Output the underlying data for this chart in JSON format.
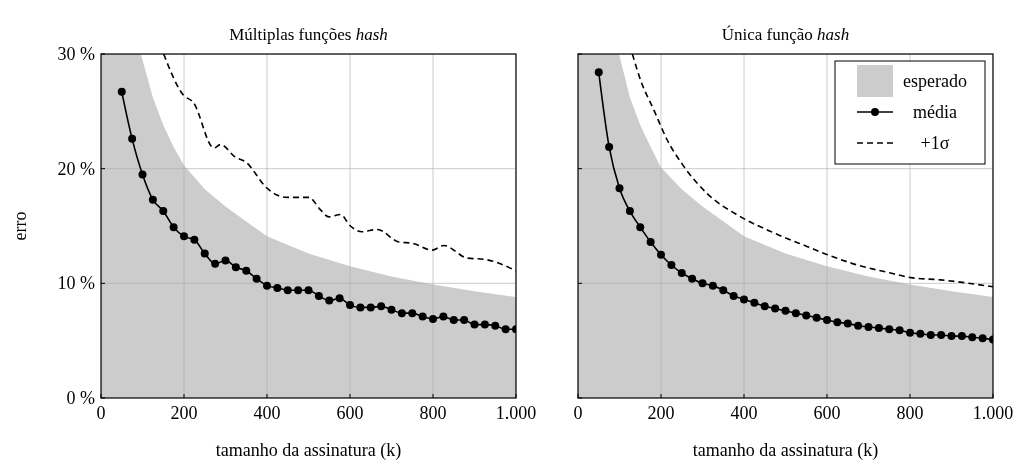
{
  "chart_data": [
    {
      "type": "line",
      "title": "Múltiplas funções hash",
      "xlabel": "tamanho da assinatura (k)",
      "ylabel": "erro",
      "xlim": [
        0,
        1000
      ],
      "ylim": [
        0,
        30
      ],
      "xticks": [
        0,
        200,
        400,
        600,
        800,
        {
          "value": 1000,
          "label": "1.000"
        }
      ],
      "yticks": [
        {
          "value": 0,
          "label": "0 %"
        },
        {
          "value": 10,
          "label": "10 %"
        },
        {
          "value": 20,
          "label": "20 %"
        },
        {
          "value": 30,
          "label": "30 %"
        }
      ],
      "grid": true,
      "legend": false,
      "series": [
        {
          "type": "area",
          "color": "#cccccc",
          "x": [
            0,
            96,
            125,
            150,
            175,
            200,
            250,
            300,
            400,
            500,
            600,
            700,
            800,
            900,
            1000
          ],
          "values": [
            30,
            30,
            26.2,
            23.8,
            21.9,
            20.3,
            18.2,
            16.7,
            14.1,
            12.6,
            11.5,
            10.6,
            9.9,
            9.3,
            8.8
          ]
        },
        {
          "type": "line",
          "color": "#000000",
          "marker": "circle",
          "line_style": "solid",
          "x": [
            50,
            75,
            100,
            125,
            150,
            175,
            200,
            225,
            250,
            275,
            300,
            325,
            350,
            375,
            400,
            425,
            450,
            475,
            500,
            525,
            550,
            575,
            600,
            625,
            650,
            675,
            700,
            725,
            750,
            775,
            800,
            825,
            850,
            875,
            900,
            925,
            950,
            975,
            1000
          ],
          "values": [
            26.7,
            22.6,
            19.5,
            17.3,
            16.3,
            14.9,
            14.1,
            13.8,
            12.6,
            11.7,
            12.0,
            11.4,
            11.1,
            10.4,
            9.8,
            9.6,
            9.4,
            9.4,
            9.4,
            8.9,
            8.5,
            8.7,
            8.1,
            7.9,
            7.9,
            8.0,
            7.7,
            7.4,
            7.4,
            7.1,
            6.9,
            7.1,
            6.8,
            6.8,
            6.4,
            6.4,
            6.3,
            6.0,
            6.0
          ]
        },
        {
          "type": "line",
          "color": "#000000",
          "marker": "none",
          "line_style": "dashed",
          "x": [
            151,
            199,
            222,
            272,
            288,
            324,
            348,
            400,
            424,
            449,
            501,
            529,
            549,
            577,
            601,
            629,
            666,
            718,
            750,
            798,
            826,
            883,
            923,
            1000
          ],
          "values": [
            30,
            26.4,
            25.8,
            21.8,
            22.1,
            21.0,
            20.6,
            18.3,
            17.7,
            17.5,
            17.5,
            16.4,
            15.8,
            16.0,
            15.0,
            14.5,
            14.7,
            13.6,
            13.5,
            12.9,
            13.3,
            12.2,
            12.1,
            11.1
          ]
        }
      ]
    },
    {
      "type": "line",
      "title": "Única função hash",
      "xlabel": "tamanho da assinatura (k)",
      "xlim": [
        0,
        1000
      ],
      "ylim": [
        0,
        30
      ],
      "xticks": [
        0,
        200,
        400,
        600,
        800,
        {
          "value": 1000,
          "label": "1.000"
        }
      ],
      "yticks": [
        {
          "value": 0,
          "label": null
        },
        {
          "value": 10,
          "label": null
        },
        {
          "value": 20,
          "label": null
        },
        {
          "value": 30,
          "label": null
        }
      ],
      "tick_labels": "x",
      "grid": true,
      "legend": "top right",
      "series": [
        {
          "name": "esperado",
          "type": "area",
          "color": "#cccccc",
          "x": [
            0,
            99,
            125,
            150,
            175,
            200,
            250,
            300,
            400,
            500,
            600,
            700,
            800,
            900,
            1000
          ],
          "values": [
            30,
            30,
            26.2,
            23.8,
            21.9,
            20.1,
            18.2,
            16.7,
            14.1,
            12.6,
            11.5,
            10.6,
            9.9,
            9.3,
            8.8
          ]
        },
        {
          "name": "média",
          "type": "line",
          "color": "#000000",
          "marker": "circle",
          "line_style": "solid",
          "x": [
            50,
            75,
            100,
            125,
            150,
            175,
            200,
            225,
            250,
            275,
            300,
            325,
            350,
            375,
            400,
            425,
            450,
            475,
            500,
            525,
            550,
            575,
            600,
            625,
            650,
            675,
            700,
            725,
            750,
            775,
            800,
            825,
            850,
            875,
            900,
            925,
            950,
            975,
            1000
          ],
          "values": [
            28.4,
            21.9,
            18.3,
            16.3,
            14.9,
            13.6,
            12.5,
            11.6,
            10.9,
            10.4,
            10.0,
            9.8,
            9.4,
            8.9,
            8.6,
            8.3,
            8.0,
            7.8,
            7.6,
            7.4,
            7.2,
            7.0,
            6.8,
            6.6,
            6.5,
            6.3,
            6.2,
            6.1,
            6.0,
            5.9,
            5.7,
            5.6,
            5.5,
            5.5,
            5.4,
            5.4,
            5.3,
            5.2,
            5.1
          ]
        },
        {
          "name": "+1σ",
          "type": "line",
          "color": "#000000",
          "marker": "none",
          "line_style": "dashed",
          "x": [
            131,
            151,
            183,
            215,
            255,
            312,
            392,
            472,
            553,
            601,
            673,
            753,
            802,
            874,
            1000
          ],
          "values": [
            30,
            27.7,
            25.1,
            22.5,
            20.2,
            17.8,
            15.8,
            14.4,
            13.2,
            12.5,
            11.6,
            10.9,
            10.5,
            10.3,
            9.7
          ]
        }
      ]
    }
  ]
}
